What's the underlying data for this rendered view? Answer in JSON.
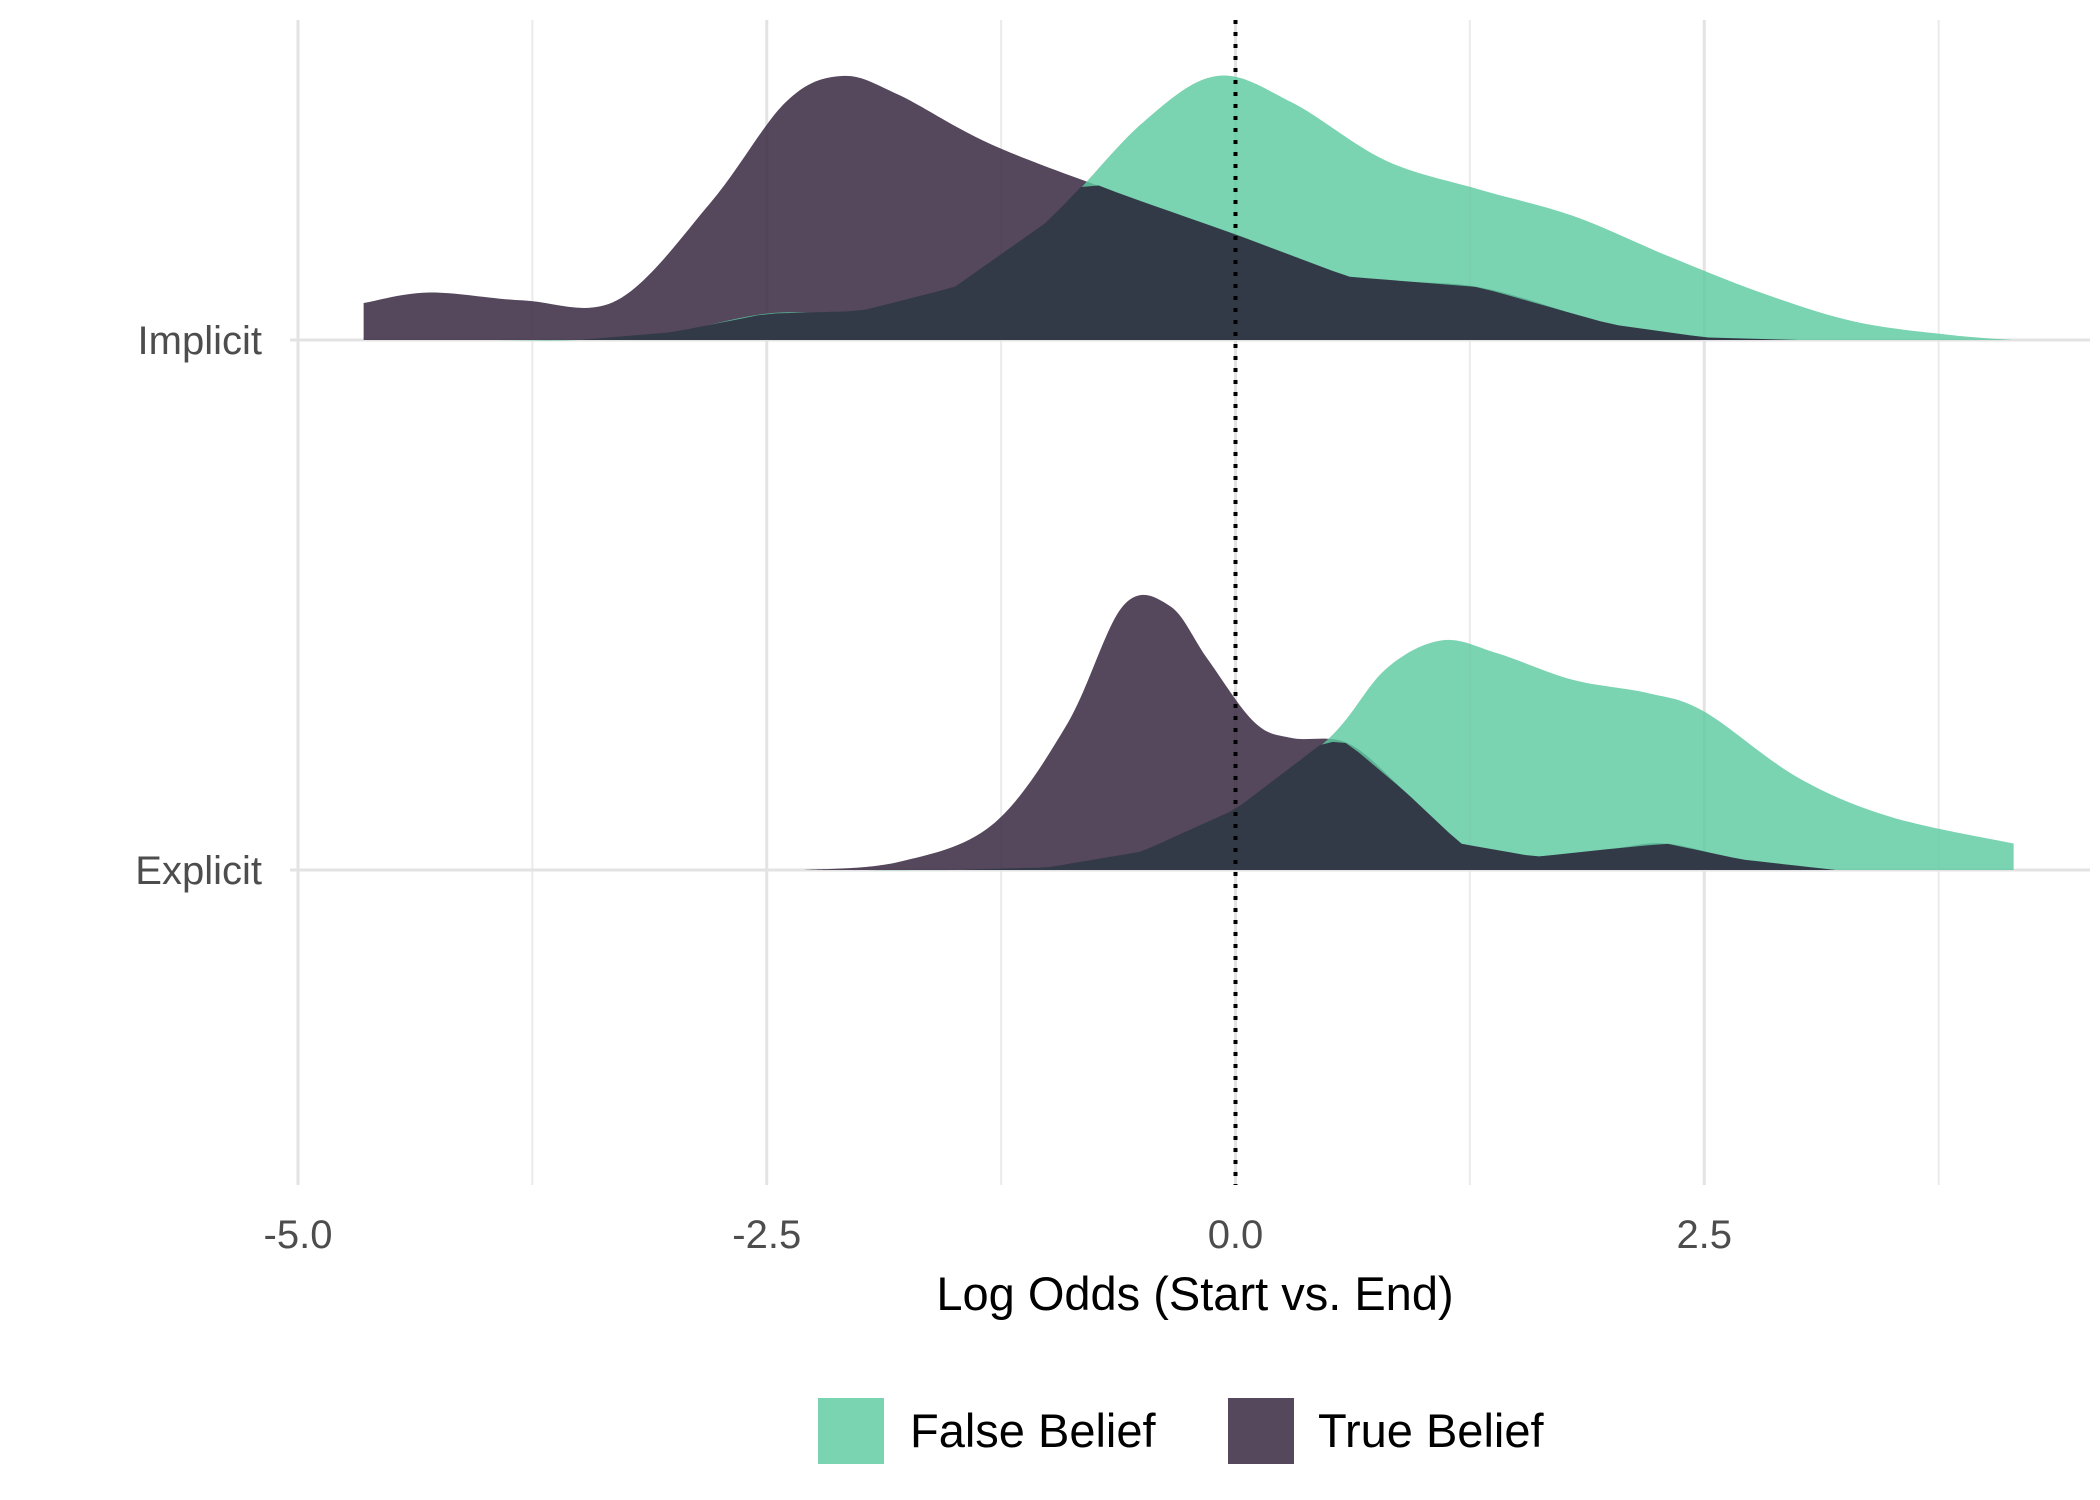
{
  "chart_data": {
    "type": "area",
    "subtype": "ridgeline-density",
    "xlabel": "Log Odds (Start vs. End)",
    "ylabel": "",
    "xlim": [
      -5.0,
      4.5
    ],
    "x_ticks": [
      -5.0,
      -2.5,
      0.0,
      2.5
    ],
    "x_tick_labels": [
      "-5.0",
      "-2.5",
      "0.0",
      "2.5"
    ],
    "reference_line": {
      "x": 0.0,
      "style": "dotted",
      "color": "#000000"
    },
    "grid": true,
    "legend_position": "bottom",
    "categories": [
      "Implicit",
      "Explicit"
    ],
    "series": [
      {
        "name": "False Belief",
        "color": "#5dc9a0",
        "groups": [
          {
            "category": "Implicit",
            "x": [
              -4.65,
              -4.0,
              -3.5,
              -3.0,
              -2.5,
              -2.0,
              -1.5,
              -1.0,
              -0.5,
              -0.1,
              0.3,
              0.8,
              1.3,
              1.8,
              2.3,
              2.8,
              3.3,
              3.8,
              4.15
            ],
            "density": [
              0.0,
              0.0,
              0.0,
              0.03,
              0.1,
              0.11,
              0.2,
              0.45,
              0.82,
              1.0,
              0.9,
              0.68,
              0.57,
              0.47,
              0.32,
              0.18,
              0.07,
              0.02,
              0.0
            ]
          },
          {
            "category": "Explicit",
            "x": [
              -2.5,
              -1.5,
              -1.0,
              -0.5,
              0.0,
              0.5,
              0.8,
              1.1,
              1.4,
              1.8,
              2.2,
              2.5,
              3.0,
              3.5,
              4.15
            ],
            "density": [
              0.0,
              0.0,
              0.01,
              0.07,
              0.23,
              0.5,
              0.76,
              0.87,
              0.82,
              0.72,
              0.67,
              0.6,
              0.35,
              0.2,
              0.1
            ]
          }
        ]
      },
      {
        "name": "True Belief",
        "color": "#3d2e45",
        "groups": [
          {
            "category": "Implicit",
            "x": [
              -4.65,
              -4.3,
              -3.8,
              -3.3,
              -2.8,
              -2.4,
              -2.1,
              -1.8,
              -1.3,
              -0.6,
              0.0,
              0.6,
              1.3,
              2.0,
              2.5,
              3.0
            ],
            "density": [
              0.14,
              0.18,
              0.15,
              0.15,
              0.52,
              0.9,
              1.0,
              0.93,
              0.74,
              0.55,
              0.4,
              0.24,
              0.2,
              0.06,
              0.01,
              0.0
            ]
          },
          {
            "category": "Explicit",
            "x": [
              -2.3,
              -1.8,
              -1.3,
              -0.9,
              -0.6,
              -0.35,
              -0.15,
              0.1,
              0.3,
              0.6,
              0.9,
              1.2,
              1.6,
              2.0,
              2.3,
              2.7,
              3.2
            ],
            "density": [
              0.0,
              0.03,
              0.17,
              0.55,
              1.0,
              1.0,
              0.8,
              0.56,
              0.5,
              0.48,
              0.3,
              0.1,
              0.05,
              0.08,
              0.1,
              0.04,
              0.0
            ]
          }
        ]
      }
    ]
  }
}
